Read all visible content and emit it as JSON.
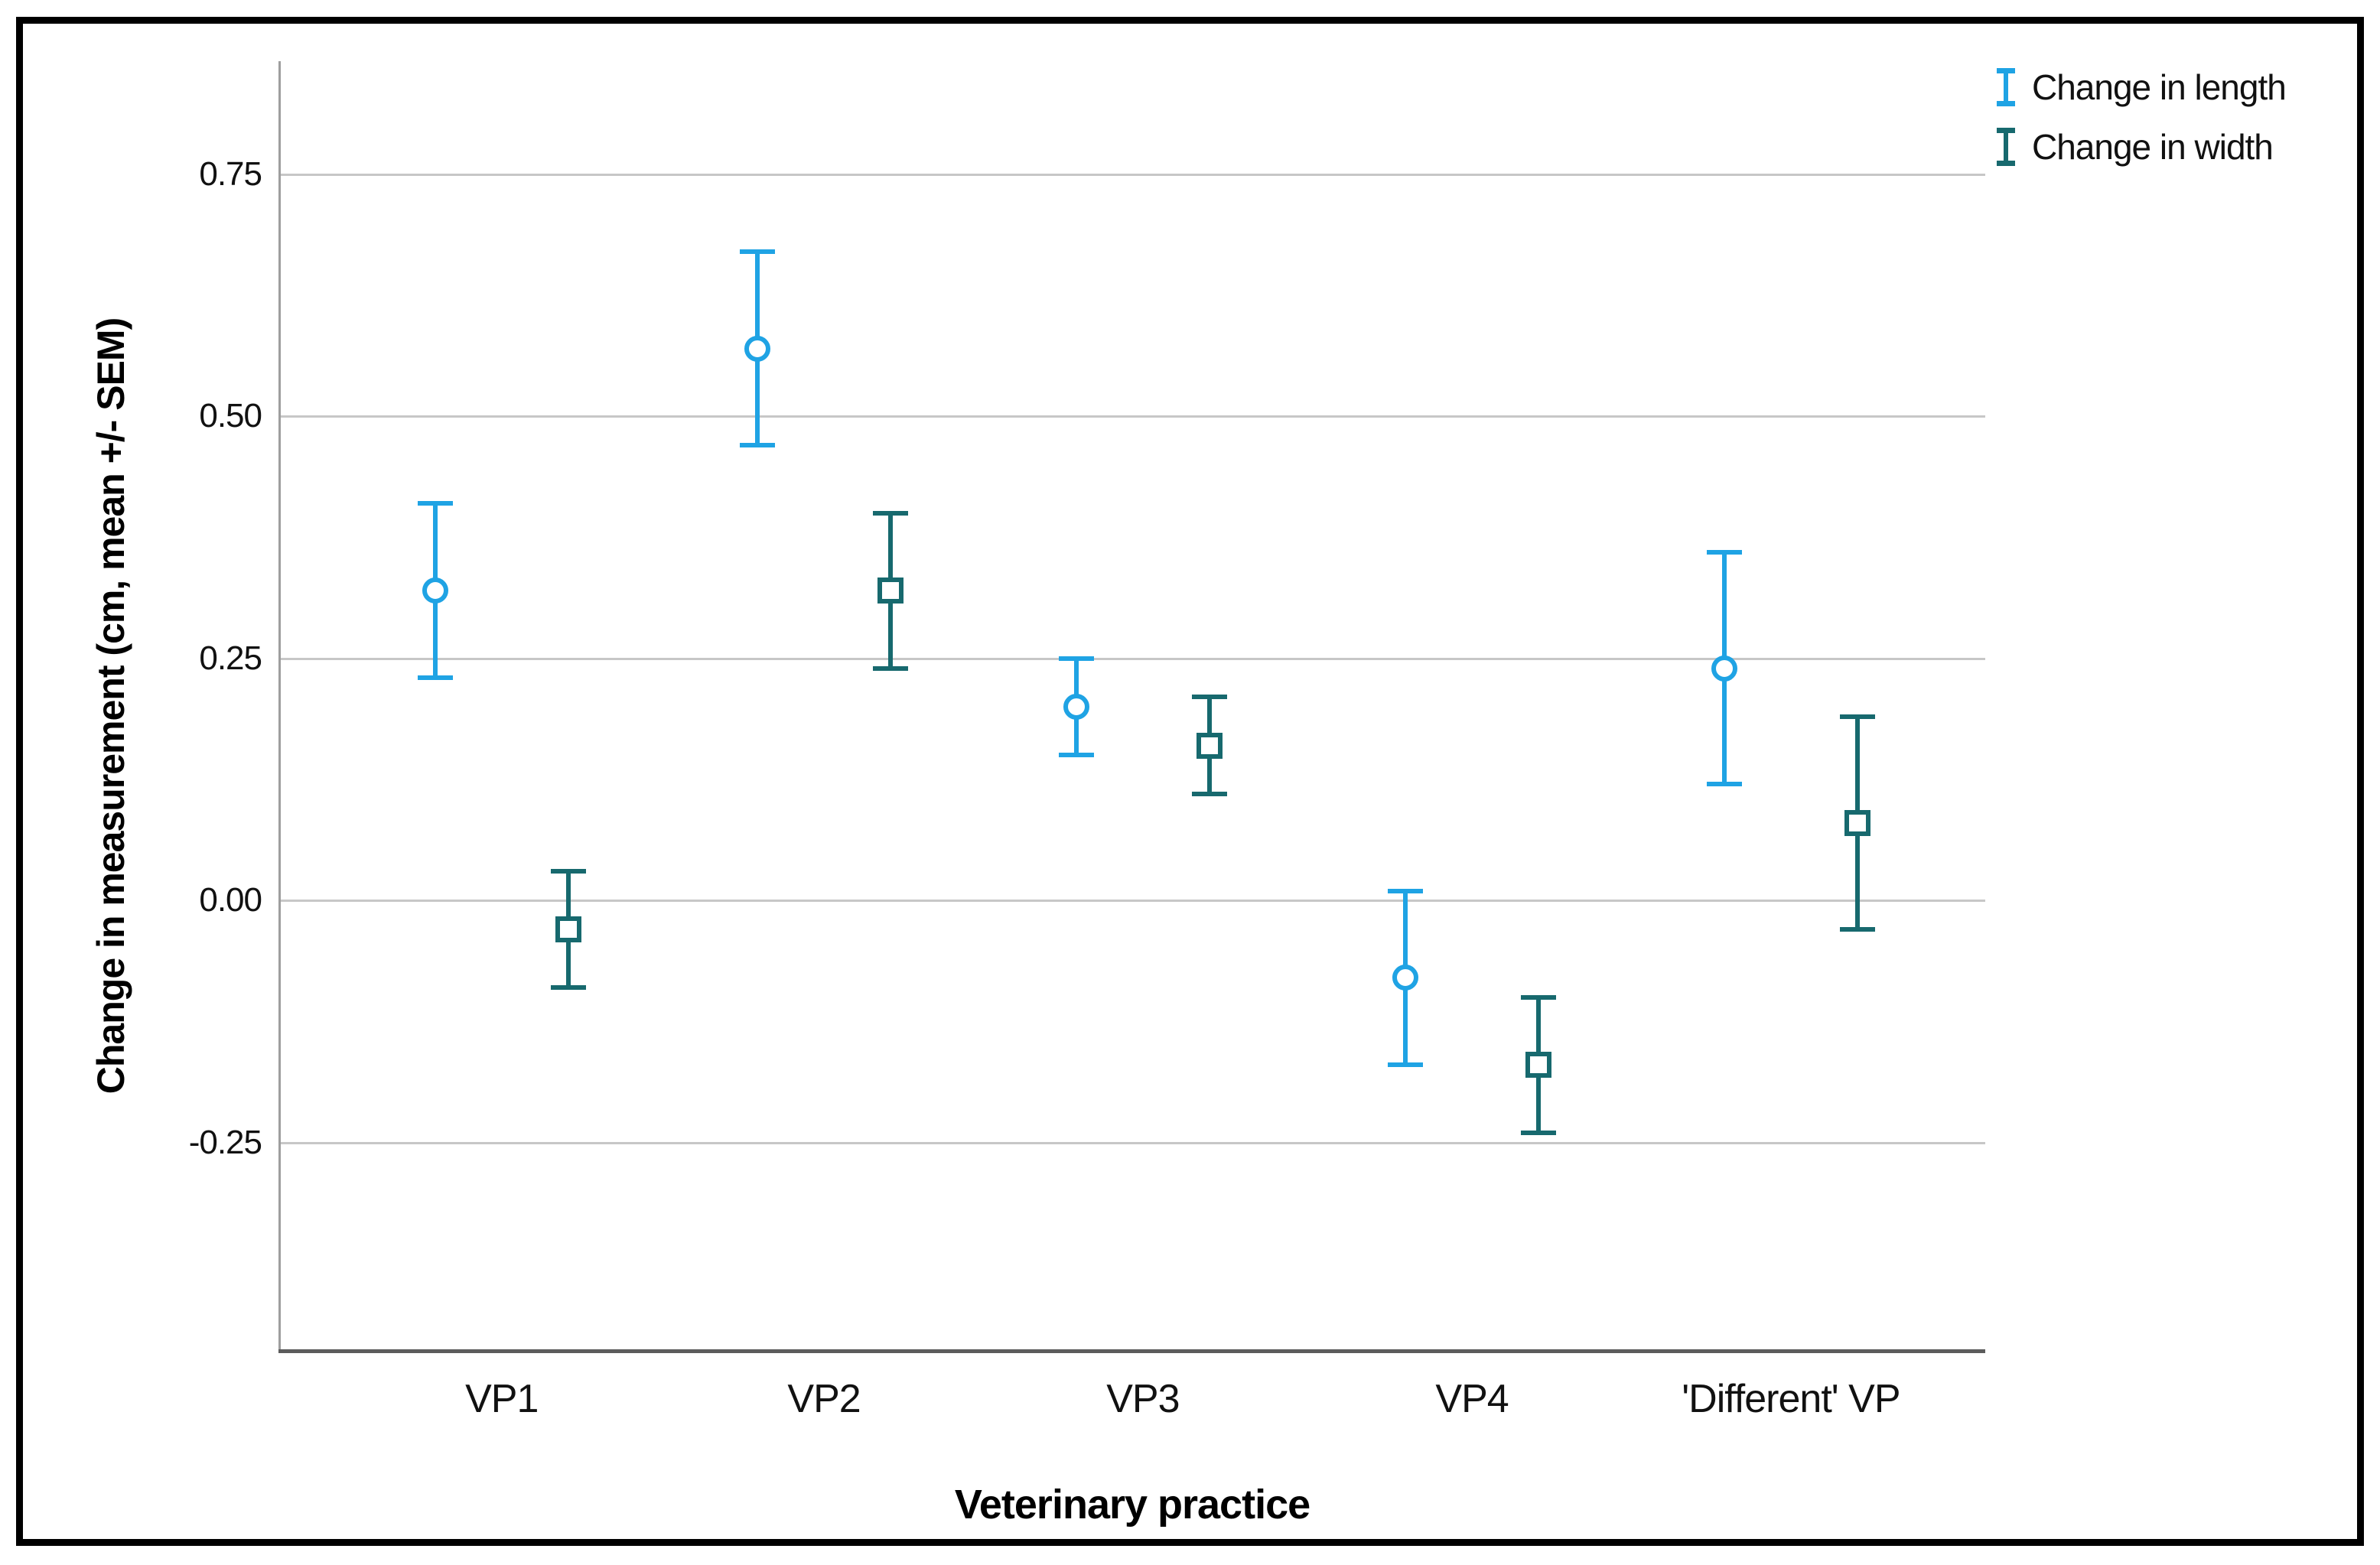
{
  "chart_data": {
    "type": "errorbar",
    "title": "",
    "xlabel": "Veterinary practice",
    "ylabel": "Change in measurement (cm, mean +/- SEM)",
    "categories": [
      "VP1",
      "VP2",
      "VP3",
      "VP4",
      "'Different' VP"
    ],
    "series": [
      {
        "name": "Change in length",
        "marker": "circle",
        "color": "#1fa3e4",
        "means": [
          0.32,
          0.57,
          0.2,
          -0.08,
          0.24
        ],
        "sem": [
          0.09,
          0.1,
          0.05,
          0.09,
          0.12
        ]
      },
      {
        "name": "Change in width",
        "marker": "square",
        "color": "#17696e",
        "means": [
          -0.03,
          0.32,
          0.16,
          -0.17,
          0.08
        ],
        "sem": [
          0.06,
          0.08,
          0.05,
          0.07,
          0.11
        ]
      }
    ],
    "y_ticks": [
      0.75,
      0.5,
      0.25,
      0.0,
      -0.25
    ],
    "y_tick_labels": [
      "0.75",
      "0.50",
      "0.25",
      "0.00",
      "-0.25"
    ],
    "ylim": [
      -0.466,
      0.867
    ],
    "grid": "horizontal",
    "legend_position": "top-right",
    "colors": {
      "gridline": "#c7c7c7",
      "y_axis_line": "#9e9e9e",
      "x_axis_line": "#5c5c5c",
      "frame_border": "#000000",
      "background": "#ffffff",
      "text": "#111111"
    }
  }
}
